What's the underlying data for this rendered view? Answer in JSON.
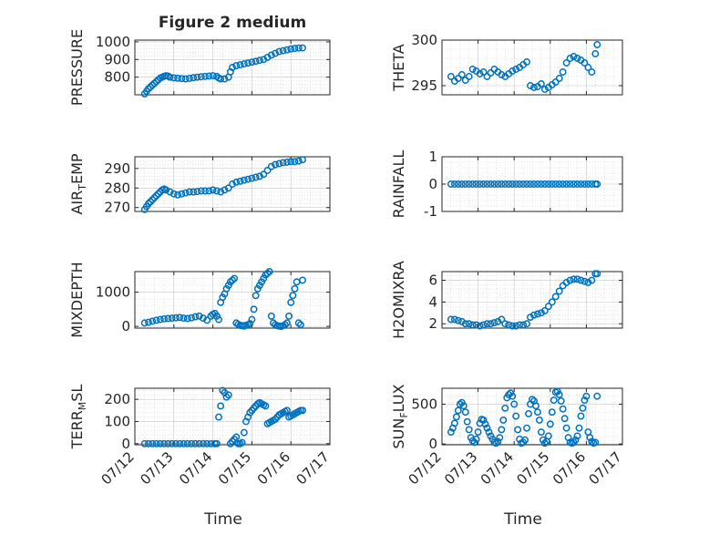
{
  "figure": {
    "title": "Figure 2 medium",
    "bottom_xlabel_left": "Time",
    "bottom_xlabel_right": "Time"
  },
  "style": {
    "marker_color": "#0072BD",
    "axis_color": "#262626",
    "grid_color": "#b0b0b0"
  },
  "x_tick_labels": [
    "07/12",
    "07/13",
    "07/14",
    "07/15",
    "07/16",
    "07/17"
  ],
  "chart_data": [
    {
      "type": "scatter",
      "ylabel": "PRESSURE",
      "title": "Figure 2 medium",
      "xlim": [
        12,
        17
      ],
      "ylim": [
        700,
        1010
      ],
      "yticks": [
        800,
        900,
        1000
      ],
      "grid": true,
      "x": [
        12.25,
        12.3,
        12.35,
        12.4,
        12.45,
        12.5,
        12.55,
        12.6,
        12.65,
        12.7,
        12.75,
        12.8,
        12.85,
        12.9,
        13.0,
        13.1,
        13.2,
        13.3,
        13.4,
        13.5,
        13.6,
        13.7,
        13.8,
        13.9,
        14.0,
        14.1,
        14.15,
        14.2,
        14.3,
        14.4,
        14.45,
        14.5,
        14.6,
        14.7,
        14.8,
        14.9,
        15.0,
        15.1,
        15.2,
        15.3,
        15.4,
        15.5,
        15.6,
        15.7,
        15.8,
        15.9,
        16.0,
        16.1,
        16.2,
        16.3
      ],
      "y": [
        705,
        720,
        735,
        745,
        755,
        765,
        775,
        785,
        795,
        800,
        805,
        808,
        806,
        800,
        796,
        794,
        792,
        790,
        793,
        797,
        800,
        802,
        804,
        806,
        808,
        804,
        795,
        790,
        790,
        800,
        830,
        855,
        865,
        870,
        875,
        880,
        885,
        890,
        895,
        900,
        912,
        925,
        935,
        945,
        950,
        955,
        960,
        963,
        965,
        966
      ]
    },
    {
      "type": "scatter",
      "ylabel": "THETA",
      "xlim": [
        12,
        17
      ],
      "ylim": [
        294,
        300
      ],
      "yticks": [
        295,
        300
      ],
      "grid": true,
      "x": [
        12.25,
        12.35,
        12.45,
        12.55,
        12.65,
        12.75,
        12.85,
        12.95,
        13.05,
        13.15,
        13.25,
        13.35,
        13.45,
        13.55,
        13.65,
        13.75,
        13.85,
        13.95,
        14.05,
        14.15,
        14.25,
        14.35,
        14.45,
        14.55,
        14.65,
        14.75,
        14.85,
        14.95,
        15.05,
        15.15,
        15.25,
        15.35,
        15.45,
        15.55,
        15.65,
        15.75,
        15.85,
        15.95,
        16.05,
        16.15,
        16.25,
        16.3
      ],
      "y": [
        296.0,
        295.5,
        295.8,
        296.2,
        295.6,
        296.0,
        296.8,
        296.6,
        296.3,
        296.5,
        296.0,
        296.4,
        296.8,
        296.5,
        296.2,
        296.0,
        296.3,
        296.6,
        296.8,
        297.0,
        297.3,
        297.6,
        295.0,
        294.8,
        294.9,
        295.2,
        294.6,
        294.8,
        295.1,
        295.4,
        295.8,
        296.5,
        297.5,
        298.0,
        298.2,
        298.0,
        297.8,
        297.5,
        297.0,
        296.5,
        298.5,
        299.5
      ]
    },
    {
      "type": "scatter",
      "ylabel": "AIR_TEMP",
      "xlim": [
        12,
        17
      ],
      "ylim": [
        268,
        296
      ],
      "yticks": [
        270,
        280,
        290
      ],
      "grid": true,
      "x": [
        12.25,
        12.3,
        12.35,
        12.4,
        12.45,
        12.5,
        12.55,
        12.6,
        12.65,
        12.7,
        12.75,
        12.8,
        12.9,
        13.0,
        13.1,
        13.2,
        13.3,
        13.4,
        13.5,
        13.6,
        13.7,
        13.8,
        13.9,
        14.0,
        14.1,
        14.2,
        14.3,
        14.4,
        14.5,
        14.6,
        14.7,
        14.8,
        14.9,
        15.0,
        15.1,
        15.2,
        15.3,
        15.4,
        15.5,
        15.6,
        15.7,
        15.8,
        15.9,
        16.0,
        16.1,
        16.2,
        16.3
      ],
      "y": [
        269,
        270.5,
        272,
        273,
        274,
        275,
        276,
        277,
        278,
        279,
        279.5,
        279,
        278,
        277,
        276.5,
        277,
        277.5,
        278,
        278,
        278.2,
        278.5,
        278.5,
        278.5,
        279,
        278.5,
        278,
        279,
        280,
        282,
        283,
        283.5,
        284,
        284.5,
        285,
        285.5,
        286,
        287,
        289,
        291,
        292,
        292.5,
        293,
        293.2,
        293.5,
        293.5,
        293.8,
        294.5
      ]
    },
    {
      "type": "scatter",
      "ylabel": "RAINFALL",
      "xlim": [
        12,
        17
      ],
      "ylim": [
        -1,
        1
      ],
      "yticks": [
        -1,
        0,
        1
      ],
      "grid": true,
      "x": [
        12.25,
        12.35,
        12.45,
        12.55,
        12.65,
        12.75,
        12.85,
        12.95,
        13.05,
        13.15,
        13.25,
        13.35,
        13.45,
        13.55,
        13.65,
        13.75,
        13.85,
        13.95,
        14.05,
        14.15,
        14.25,
        14.35,
        14.45,
        14.55,
        14.65,
        14.75,
        14.85,
        14.95,
        15.05,
        15.15,
        15.25,
        15.35,
        15.45,
        15.55,
        15.65,
        15.75,
        15.85,
        15.95,
        16.05,
        16.15,
        16.25,
        16.3
      ],
      "y": [
        0,
        0,
        0,
        0,
        0,
        0,
        0,
        0,
        0,
        0,
        0,
        0,
        0,
        0,
        0,
        0,
        0,
        0,
        0,
        0,
        0,
        0,
        0,
        0,
        0,
        0,
        0,
        0,
        0,
        0,
        0,
        0,
        0,
        0,
        0,
        0,
        0,
        0,
        0,
        0,
        0,
        0
      ]
    },
    {
      "type": "scatter",
      "ylabel": "MIXDEPTH",
      "xlim": [
        12,
        17
      ],
      "ylim": [
        -50,
        1600
      ],
      "yticks": [
        0,
        1000
      ],
      "grid": true,
      "x": [
        12.25,
        12.35,
        12.45,
        12.55,
        12.65,
        12.75,
        12.85,
        12.95,
        13.05,
        13.15,
        13.25,
        13.35,
        13.45,
        13.55,
        13.65,
        13.75,
        13.85,
        13.95,
        14.0,
        14.05,
        14.1,
        14.15,
        14.2,
        14.25,
        14.3,
        14.35,
        14.4,
        14.45,
        14.5,
        14.55,
        14.6,
        14.65,
        14.7,
        14.75,
        14.8,
        14.85,
        14.9,
        14.95,
        15.0,
        15.05,
        15.1,
        15.15,
        15.2,
        15.25,
        15.3,
        15.35,
        15.4,
        15.45,
        15.5,
        15.55,
        15.6,
        15.65,
        15.7,
        15.75,
        15.8,
        15.85,
        15.9,
        15.95,
        16.0,
        16.05,
        16.1,
        16.15,
        16.2,
        16.25,
        16.3
      ],
      "y": [
        100,
        120,
        150,
        180,
        200,
        220,
        230,
        240,
        250,
        260,
        240,
        230,
        250,
        280,
        300,
        240,
        180,
        300,
        350,
        380,
        300,
        200,
        700,
        850,
        950,
        1100,
        1200,
        1300,
        1350,
        1400,
        100,
        60,
        30,
        20,
        10,
        30,
        50,
        80,
        200,
        500,
        900,
        1100,
        1200,
        1300,
        1400,
        1500,
        1550,
        1600,
        300,
        100,
        50,
        20,
        10,
        0,
        20,
        50,
        100,
        300,
        700,
        900,
        1100,
        1300,
        100,
        50,
        1350
      ]
    },
    {
      "type": "scatter",
      "ylabel": "H2OMIXRA",
      "xlim": [
        12,
        17
      ],
      "ylim": [
        1.6,
        6.8
      ],
      "yticks": [
        2,
        4,
        6
      ],
      "grid": true,
      "x": [
        12.25,
        12.35,
        12.45,
        12.55,
        12.65,
        12.75,
        12.85,
        12.95,
        13.05,
        13.15,
        13.25,
        13.35,
        13.45,
        13.55,
        13.65,
        13.75,
        13.85,
        13.95,
        14.05,
        14.15,
        14.25,
        14.35,
        14.45,
        14.55,
        14.65,
        14.75,
        14.85,
        14.95,
        15.05,
        15.15,
        15.25,
        15.35,
        15.45,
        15.55,
        15.65,
        15.75,
        15.85,
        15.95,
        16.05,
        16.15,
        16.25,
        16.3
      ],
      "y": [
        2.4,
        2.4,
        2.3,
        2.2,
        2.0,
        2.0,
        1.9,
        1.9,
        1.8,
        1.9,
        2.0,
        2.0,
        2.1,
        2.2,
        2.4,
        2.0,
        1.9,
        1.8,
        1.8,
        1.9,
        1.9,
        2.0,
        2.6,
        2.8,
        2.9,
        3.0,
        3.2,
        3.6,
        4.0,
        4.5,
        5.0,
        5.5,
        5.8,
        6.0,
        6.1,
        6.1,
        6.0,
        5.9,
        5.8,
        6.0,
        6.6,
        6.6
      ]
    },
    {
      "type": "scatter",
      "ylabel": "TERR_MSL",
      "xlim": [
        12,
        17
      ],
      "ylim": [
        -5,
        250
      ],
      "yticks": [
        0,
        100,
        200
      ],
      "grid": true,
      "x": [
        12.25,
        12.35,
        12.45,
        12.55,
        12.65,
        12.75,
        12.85,
        12.95,
        13.05,
        13.15,
        13.25,
        13.35,
        13.45,
        13.55,
        13.65,
        13.75,
        13.85,
        13.95,
        14.05,
        14.1,
        14.15,
        14.2,
        14.25,
        14.3,
        14.35,
        14.4,
        14.45,
        14.5,
        14.55,
        14.6,
        14.65,
        14.7,
        14.75,
        14.8,
        14.85,
        14.9,
        14.95,
        15.0,
        15.05,
        15.1,
        15.15,
        15.2,
        15.25,
        15.3,
        15.35,
        15.4,
        15.45,
        15.5,
        15.55,
        15.6,
        15.65,
        15.7,
        15.75,
        15.8,
        15.85,
        15.9,
        15.95,
        16.0,
        16.05,
        16.1,
        16.15,
        16.2,
        16.25,
        16.3
      ],
      "y": [
        0,
        0,
        0,
        0,
        0,
        0,
        0,
        0,
        0,
        0,
        0,
        0,
        0,
        0,
        0,
        0,
        0,
        0,
        0,
        0,
        120,
        170,
        240,
        230,
        210,
        220,
        0,
        10,
        20,
        30,
        0,
        0,
        5,
        50,
        100,
        120,
        140,
        150,
        160,
        170,
        180,
        185,
        180,
        175,
        170,
        90,
        95,
        100,
        105,
        110,
        120,
        130,
        135,
        140,
        145,
        150,
        120,
        125,
        130,
        135,
        140,
        145,
        150,
        150
      ]
    },
    {
      "type": "scatter",
      "ylabel": "SUN_FLUX",
      "xlim": [
        12,
        17
      ],
      "ylim": [
        -10,
        700
      ],
      "yticks": [
        0,
        500
      ],
      "grid": true,
      "x": [
        12.25,
        12.3,
        12.35,
        12.4,
        12.45,
        12.5,
        12.55,
        12.6,
        12.65,
        12.7,
        12.75,
        12.8,
        12.85,
        12.9,
        12.95,
        13.0,
        13.05,
        13.1,
        13.15,
        13.2,
        13.25,
        13.3,
        13.35,
        13.4,
        13.45,
        13.5,
        13.55,
        13.6,
        13.65,
        13.7,
        13.75,
        13.8,
        13.85,
        13.9,
        13.95,
        14.0,
        14.05,
        14.1,
        14.15,
        14.2,
        14.25,
        14.3,
        14.35,
        14.4,
        14.45,
        14.5,
        14.55,
        14.6,
        14.65,
        14.7,
        14.75,
        14.8,
        14.85,
        14.9,
        14.95,
        15.0,
        15.05,
        15.1,
        15.15,
        15.2,
        15.25,
        15.3,
        15.35,
        15.4,
        15.45,
        15.5,
        15.55,
        15.6,
        15.65,
        15.7,
        15.75,
        15.8,
        15.85,
        15.9,
        15.95,
        16.0,
        16.05,
        16.1,
        16.15,
        16.2,
        16.25,
        16.3
      ],
      "y": [
        150,
        200,
        260,
        340,
        420,
        500,
        520,
        480,
        400,
        280,
        180,
        80,
        40,
        20,
        60,
        150,
        260,
        310,
        300,
        250,
        200,
        150,
        100,
        60,
        20,
        10,
        30,
        80,
        180,
        300,
        450,
        580,
        620,
        640,
        600,
        500,
        350,
        180,
        60,
        10,
        20,
        50,
        200,
        380,
        500,
        560,
        540,
        480,
        400,
        300,
        150,
        50,
        10,
        30,
        100,
        250,
        400,
        550,
        650,
        660,
        620,
        540,
        440,
        320,
        200,
        80,
        20,
        10,
        20,
        50,
        100,
        200,
        350,
        450,
        550,
        600,
        150,
        80,
        30,
        10,
        20,
        600
      ]
    }
  ]
}
